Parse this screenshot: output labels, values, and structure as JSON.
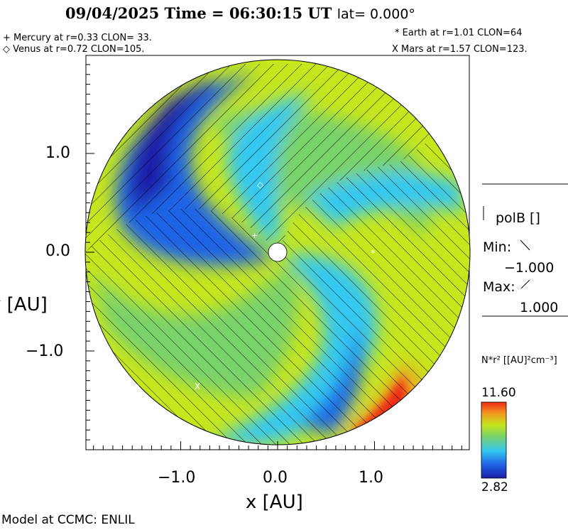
{
  "title": {
    "date": "09/04/2025",
    "time_label": "Time = 06:30:15 UT",
    "lat_label": "lat= 0.000°"
  },
  "planets": {
    "mercury": "+ Mercury at r=0.33 CLON= 33.",
    "venus": "◇ Venus at r=0.72 CLON=105.",
    "earth": "* Earth at  r=1.01 CLON=64",
    "mars": "X Mars at r=1.57 CLON=123."
  },
  "axes": {
    "x_label": "x [AU]",
    "y_label": "y [AU]",
    "x_ticks": [
      "−1.0",
      "0.0",
      "1.0"
    ],
    "y_ticks": [
      "1.0",
      "0.0",
      "−1.0"
    ]
  },
  "legend_polarity": {
    "title": "polB []",
    "min_label": "Min:",
    "min_value": "−1.000",
    "max_label": "Max:",
    "max_value": "1.000"
  },
  "colorbar": {
    "quantity": "N*r² [[AU]²cm⁻³]",
    "max": "11.60",
    "min": "2.82"
  },
  "footer": "Model at CCMC: ENLIL",
  "colors": {
    "dark_blue": "#1a1fa8",
    "blue": "#1f63e6",
    "cyan": "#34c8f0",
    "green": "#7ad26a",
    "yellow_green": "#c6e61e",
    "orange": "#f19a20",
    "red": "#ec2a12"
  }
}
